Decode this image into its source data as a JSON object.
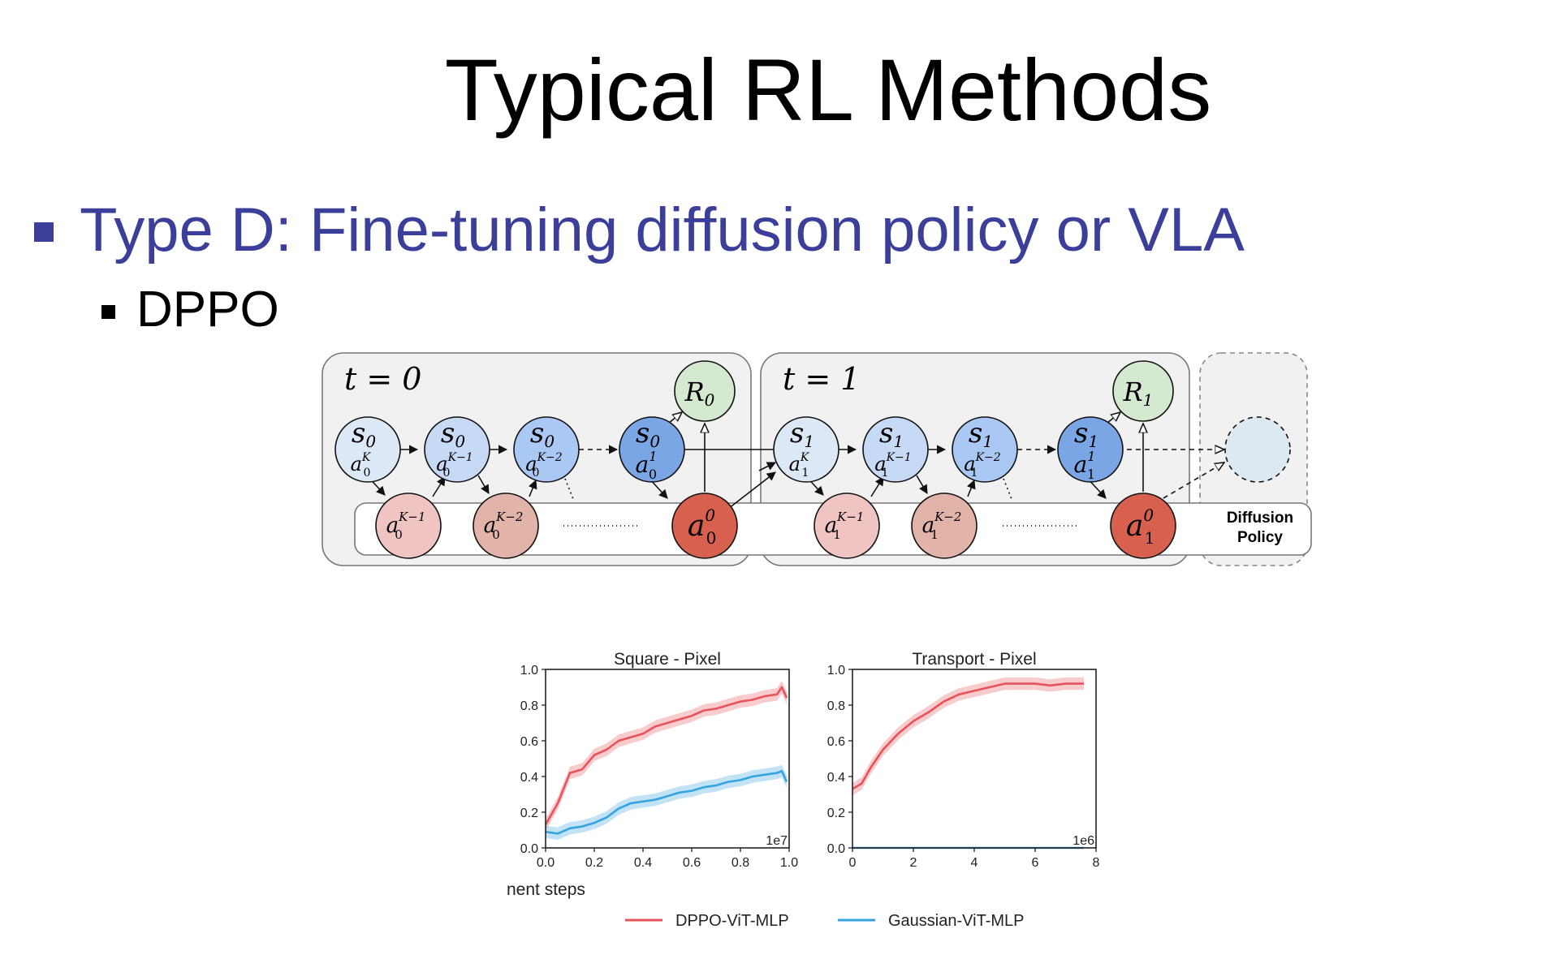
{
  "slide": {
    "title": "Typical RL Methods",
    "bullet1": "Type D: Fine-tuning diffusion policy or VLA",
    "bullet2": "DPPO"
  },
  "diagram": {
    "time_labels": [
      "t = 0",
      "t = 1"
    ],
    "state_nodes": {
      "t0": [
        {
          "s": "s",
          "s_sub": "0",
          "a": "a",
          "a_sub": "0",
          "a_sup": "K"
        },
        {
          "s": "s",
          "s_sub": "0",
          "a": "a",
          "a_sub": "0",
          "a_sup": "K−1"
        },
        {
          "s": "s",
          "s_sub": "0",
          "a": "a",
          "a_sub": "0",
          "a_sup": "K−2"
        },
        {
          "s": "s",
          "s_sub": "0",
          "a": "a",
          "a_sub": "0",
          "a_sup": "1"
        }
      ],
      "t1": [
        {
          "s": "s",
          "s_sub": "1",
          "a": "a",
          "a_sub": "1",
          "a_sup": "K"
        },
        {
          "s": "s",
          "s_sub": "1",
          "a": "a",
          "a_sub": "1",
          "a_sup": "K−1"
        },
        {
          "s": "s",
          "s_sub": "1",
          "a": "a",
          "a_sub": "1",
          "a_sup": "K−2"
        },
        {
          "s": "s",
          "s_sub": "1",
          "a": "a",
          "a_sub": "1",
          "a_sup": "1"
        }
      ]
    },
    "action_nodes": {
      "t0": [
        {
          "a": "a",
          "sub": "0",
          "sup": "K−1"
        },
        {
          "a": "a",
          "sub": "0",
          "sup": "K−2"
        },
        {
          "a": "a",
          "sub": "0",
          "sup": "0"
        }
      ],
      "t1": [
        {
          "a": "a",
          "sub": "1",
          "sup": "K−1"
        },
        {
          "a": "a",
          "sub": "1",
          "sup": "K−2"
        },
        {
          "a": "a",
          "sub": "1",
          "sup": "0"
        }
      ]
    },
    "reward_nodes": [
      {
        "r": "R",
        "sub": "0"
      },
      {
        "r": "R",
        "sub": "1"
      }
    ],
    "policy_label_line1": "Diffusion",
    "policy_label_line2": "Policy",
    "colors": {
      "state_gradient": [
        "#dce8f5",
        "#c6daf6",
        "#aac8f4",
        "#7aa6e6"
      ],
      "action_nodes": [
        "#efc4c2",
        "#e2b3a8",
        "#d7604e"
      ],
      "reward": "#d4e9cf",
      "frame_bg": "#f1f1f1",
      "future_node": "#dce8f2"
    }
  },
  "legend": [
    {
      "label": "DPPO-ViT-MLP",
      "color": "#e8535b"
    },
    {
      "label": "Gaussian-ViT-MLP",
      "color": "#35a3e0"
    }
  ],
  "chart_data": [
    {
      "type": "line",
      "title": "Square - Pixel",
      "xlabel": "nent steps",
      "x_multiplier": "1e7",
      "xlim": [
        0,
        1.0
      ],
      "ylim": [
        0,
        1.0
      ],
      "xticks": [
        "0.0",
        "0.2",
        "0.4",
        "0.6",
        "0.8",
        "1.0"
      ],
      "yticks": [
        "0.0",
        "0.2",
        "0.4",
        "0.6",
        "0.8",
        "1.0"
      ],
      "grid": false,
      "series": [
        {
          "name": "DPPO-ViT-MLP",
          "color": "#e8535b",
          "x": [
            0.0,
            0.05,
            0.1,
            0.15,
            0.2,
            0.25,
            0.3,
            0.35,
            0.4,
            0.45,
            0.5,
            0.55,
            0.6,
            0.65,
            0.7,
            0.75,
            0.8,
            0.85,
            0.9,
            0.95,
            0.97,
            0.99
          ],
          "y": [
            0.13,
            0.25,
            0.42,
            0.44,
            0.52,
            0.55,
            0.6,
            0.62,
            0.64,
            0.68,
            0.7,
            0.72,
            0.74,
            0.77,
            0.78,
            0.8,
            0.82,
            0.83,
            0.85,
            0.86,
            0.9,
            0.84
          ]
        },
        {
          "name": "Gaussian-ViT-MLP",
          "color": "#35a3e0",
          "x": [
            0.0,
            0.05,
            0.1,
            0.15,
            0.2,
            0.25,
            0.3,
            0.35,
            0.4,
            0.45,
            0.5,
            0.55,
            0.6,
            0.65,
            0.7,
            0.75,
            0.8,
            0.85,
            0.9,
            0.95,
            0.97,
            0.99
          ],
          "y": [
            0.09,
            0.08,
            0.11,
            0.12,
            0.14,
            0.17,
            0.22,
            0.25,
            0.26,
            0.27,
            0.29,
            0.31,
            0.32,
            0.34,
            0.35,
            0.37,
            0.38,
            0.4,
            0.41,
            0.42,
            0.43,
            0.37
          ]
        }
      ]
    },
    {
      "type": "line",
      "title": "Transport - Pixel",
      "x_multiplier": "1e6",
      "xlim": [
        0,
        8
      ],
      "ylim": [
        0,
        1.0
      ],
      "xticks": [
        "0",
        "2",
        "4",
        "6",
        "8"
      ],
      "yticks": [
        "0.0",
        "0.2",
        "0.4",
        "0.6",
        "0.8",
        "1.0"
      ],
      "grid": false,
      "series": [
        {
          "name": "DPPO-ViT-MLP",
          "color": "#e8535b",
          "x": [
            0.0,
            0.3,
            0.6,
            1.0,
            1.5,
            2.0,
            2.5,
            3.0,
            3.5,
            4.0,
            4.5,
            5.0,
            5.5,
            6.0,
            6.5,
            7.0,
            7.3,
            7.6
          ],
          "y": [
            0.33,
            0.36,
            0.45,
            0.55,
            0.64,
            0.71,
            0.76,
            0.82,
            0.86,
            0.88,
            0.9,
            0.92,
            0.92,
            0.92,
            0.91,
            0.92,
            0.92,
            0.92
          ]
        },
        {
          "name": "Gaussian-ViT-MLP",
          "color": "#35a3e0",
          "x": [
            0.0,
            1.0,
            2.0,
            3.0,
            4.0,
            5.0,
            6.0,
            7.0,
            7.6
          ],
          "y": [
            0.0,
            0.0,
            0.0,
            0.0,
            0.0,
            0.0,
            0.0,
            0.0,
            0.0
          ]
        }
      ]
    }
  ]
}
